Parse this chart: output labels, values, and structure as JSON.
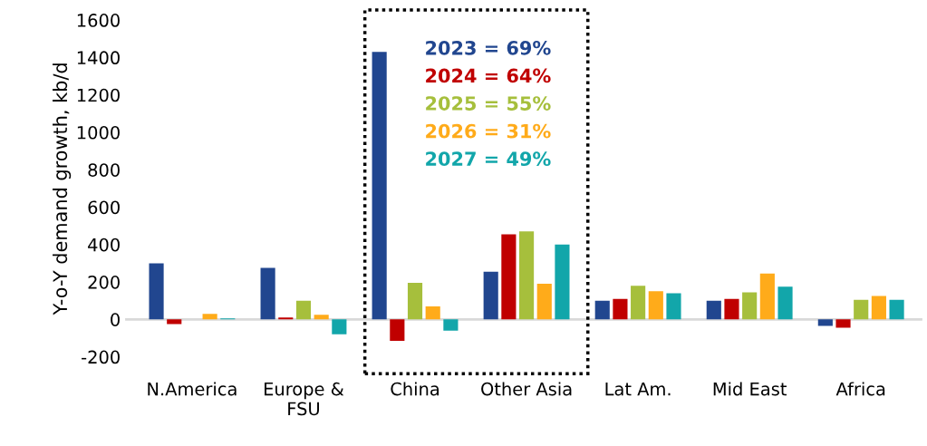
{
  "chart_data": {
    "type": "bar",
    "ylabel": "Y-o-Y demand growth, kb/d",
    "categories": [
      "N.America",
      "Europe &\nFSU",
      "China",
      "Other Asia",
      "Lat Am.",
      "Mid East",
      "Africa"
    ],
    "series": [
      {
        "name": "2023 = 69%",
        "color": "#21468f",
        "values": [
          300,
          275,
          1430,
          255,
          100,
          100,
          -35
        ]
      },
      {
        "name": "2024 = 64%",
        "color": "#c00000",
        "values": [
          -25,
          10,
          -115,
          455,
          110,
          110,
          -45
        ]
      },
      {
        "name": "2025 = 55%",
        "color": "#a6bf3c",
        "values": [
          0,
          100,
          195,
          470,
          180,
          145,
          105
        ]
      },
      {
        "name": "2026 = 31%",
        "color": "#ffab1a",
        "values": [
          30,
          25,
          70,
          190,
          150,
          245,
          125
        ]
      },
      {
        "name": "2027 = 49%",
        "color": "#12a6aa",
        "values": [
          5,
          -80,
          -60,
          400,
          140,
          175,
          105
        ]
      }
    ],
    "ylim": [
      -200,
      1600
    ],
    "yticks": [
      -200,
      0,
      200,
      400,
      600,
      800,
      1000,
      1200,
      1400,
      1600
    ],
    "ref_lines": [
      {
        "axis": "y",
        "value": 0,
        "color": "#d9d9d9"
      }
    ],
    "legend": "top"
  }
}
